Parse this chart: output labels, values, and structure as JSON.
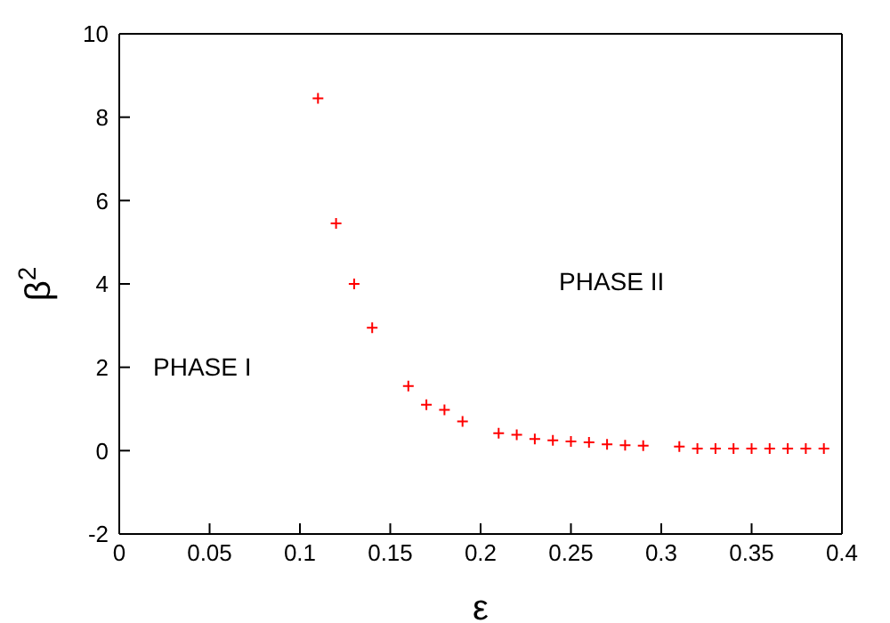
{
  "chart_data": {
    "type": "scatter",
    "xlabel": "ε",
    "ylabel": "β$^{2}$",
    "x": [
      0.11,
      0.12,
      0.13,
      0.14,
      0.16,
      0.17,
      0.18,
      0.19,
      0.21,
      0.22,
      0.23,
      0.24,
      0.25,
      0.26,
      0.27,
      0.28,
      0.29,
      0.31,
      0.32,
      0.33,
      0.34,
      0.35,
      0.36,
      0.37,
      0.38,
      0.39
    ],
    "series": [
      {
        "color": "#ff0000",
        "values": [
          8.45,
          5.45,
          4.0,
          2.95,
          1.55,
          1.1,
          0.98,
          0.7,
          0.42,
          0.38,
          0.28,
          0.25,
          0.22,
          0.2,
          0.15,
          0.13,
          0.12,
          0.1,
          0.05,
          0.05,
          0.05,
          0.05,
          0.05,
          0.05,
          0.05,
          0.05
        ]
      }
    ],
    "annotations": [
      "PHASE I",
      "PHASE II"
    ],
    "xlim": [
      0,
      0.4
    ],
    "xticks": [
      0,
      0.05,
      0.1,
      0.15,
      0.2,
      0.25,
      0.3,
      0.35,
      0.4
    ],
    "ylim": [
      -2,
      10
    ],
    "yticks": [
      -2,
      0,
      2,
      4,
      6,
      8,
      10
    ],
    "marker": "cross",
    "grid": false,
    "legend": false
  }
}
